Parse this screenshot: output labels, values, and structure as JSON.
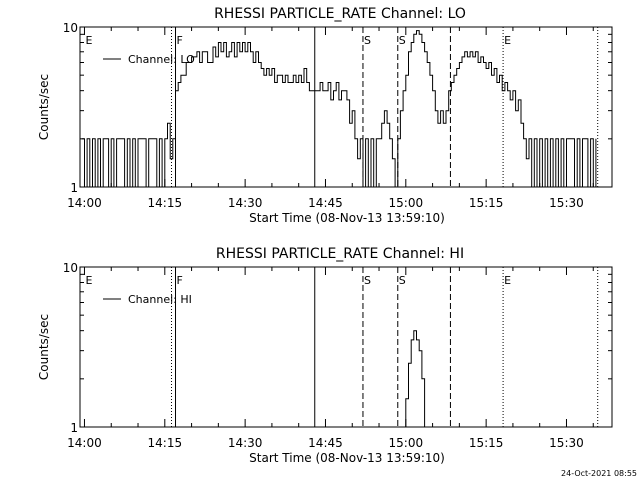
{
  "footer": {
    "timestamp": "24-Oct-2021 08:55"
  },
  "chart_data": [
    {
      "type": "line",
      "title": "RHESSI PARTICLE_RATE Channel: LO",
      "xlabel": "Start Time (08-Nov-13 13:59:10)",
      "ylabel": "Counts/sec",
      "y_scale": "log",
      "ylim": [
        1,
        10
      ],
      "xlim": [
        "13:59:10",
        "15:38:30"
      ],
      "yticks": [
        "1",
        "10"
      ],
      "xticks": [
        "14:00",
        "14:15",
        "14:30",
        "14:45",
        "15:00",
        "15:15",
        "15:30"
      ],
      "legend": "top-left",
      "series": [
        {
          "name": "Channel: LO",
          "points": [
            [
              "13:59:30",
              2
            ],
            [
              "14:00:00",
              1
            ],
            [
              "14:00:30",
              2
            ],
            [
              "14:01:00",
              1
            ],
            [
              "14:01:30",
              2
            ],
            [
              "14:02:00",
              1
            ],
            [
              "14:02:30",
              2
            ],
            [
              "14:03:00",
              1
            ],
            [
              "14:03:30",
              2
            ],
            [
              "14:04:00",
              2
            ],
            [
              "14:04:30",
              1
            ],
            [
              "14:05:00",
              2
            ],
            [
              "14:05:30",
              1
            ],
            [
              "14:06:00",
              2
            ],
            [
              "14:07:00",
              2
            ],
            [
              "14:07:30",
              1
            ],
            [
              "14:08:00",
              2
            ],
            [
              "14:08:30",
              1
            ],
            [
              "14:09:00",
              2
            ],
            [
              "14:09:30",
              1
            ],
            [
              "14:10:00",
              2
            ],
            [
              "14:11:00",
              2
            ],
            [
              "14:11:30",
              1
            ],
            [
              "14:12:00",
              2
            ],
            [
              "14:13:00",
              2
            ],
            [
              "14:13:30",
              1
            ],
            [
              "14:14:00",
              2
            ],
            [
              "14:14:30",
              1
            ],
            [
              "14:15:00",
              2
            ],
            [
              "14:15:30",
              2.5
            ],
            [
              "14:16:00",
              1.5
            ],
            [
              "14:16:30",
              2
            ],
            [
              "14:17:00",
              4
            ],
            [
              "14:17:30",
              4.5
            ],
            [
              "14:18:00",
              5
            ],
            [
              "14:19:00",
              6
            ],
            [
              "14:20:00",
              6.5
            ],
            [
              "14:21:00",
              7
            ],
            [
              "14:21:30",
              6
            ],
            [
              "14:22:00",
              7
            ],
            [
              "14:23:00",
              6
            ],
            [
              "14:24:00",
              7.5
            ],
            [
              "14:24:30",
              6.5
            ],
            [
              "14:25:00",
              8
            ],
            [
              "14:25:30",
              7
            ],
            [
              "14:26:00",
              8
            ],
            [
              "14:26:30",
              6.5
            ],
            [
              "14:27:00",
              7
            ],
            [
              "14:27:30",
              8
            ],
            [
              "14:28:00",
              6.5
            ],
            [
              "14:28:30",
              8
            ],
            [
              "14:29:00",
              7
            ],
            [
              "14:29:30",
              8
            ],
            [
              "14:30:00",
              7
            ],
            [
              "14:30:30",
              8
            ],
            [
              "14:31:00",
              7
            ],
            [
              "14:31:30",
              6
            ],
            [
              "14:32:00",
              7
            ],
            [
              "14:32:30",
              6
            ],
            [
              "14:33:00",
              5.5
            ],
            [
              "14:33:30",
              5
            ],
            [
              "14:34:00",
              5.5
            ],
            [
              "14:34:30",
              5
            ],
            [
              "14:35:00",
              5.5
            ],
            [
              "14:35:30",
              4.5
            ],
            [
              "14:36:00",
              5
            ],
            [
              "14:37:00",
              4.5
            ],
            [
              "14:37:30",
              5
            ],
            [
              "14:38:00",
              4.5
            ],
            [
              "14:39:00",
              5
            ],
            [
              "14:39:30",
              4.5
            ],
            [
              "14:40:00",
              5
            ],
            [
              "14:40:30",
              4.5
            ],
            [
              "14:41:00",
              5.5
            ],
            [
              "14:41:30",
              4.5
            ],
            [
              "14:42:00",
              4
            ],
            [
              "14:43:00",
              4
            ],
            [
              "14:44:00",
              4.5
            ],
            [
              "14:44:30",
              4
            ],
            [
              "14:45:00",
              4
            ],
            [
              "14:45:30",
              4.5
            ],
            [
              "14:46:00",
              3.5
            ],
            [
              "14:46:30",
              4
            ],
            [
              "14:47:00",
              4.5
            ],
            [
              "14:47:30",
              3.5
            ],
            [
              "14:48:00",
              4
            ],
            [
              "14:49:00",
              3.5
            ],
            [
              "14:49:30",
              2.5
            ],
            [
              "14:50:00",
              3
            ],
            [
              "14:50:30",
              2
            ],
            [
              "14:51:00",
              1.5
            ],
            [
              "14:51:30",
              2
            ],
            [
              "14:52:00",
              1
            ],
            [
              "14:52:30",
              2
            ],
            [
              "14:53:00",
              1
            ],
            [
              "14:53:30",
              2
            ],
            [
              "14:54:00",
              1
            ],
            [
              "14:54:30",
              2
            ],
            [
              "14:55:00",
              2
            ],
            [
              "14:55:30",
              2.5
            ],
            [
              "14:56:00",
              3
            ],
            [
              "14:56:30",
              2.5
            ],
            [
              "14:57:00",
              2
            ],
            [
              "14:57:30",
              1.5
            ],
            [
              "14:58:00",
              1
            ],
            [
              "14:58:30",
              2
            ],
            [
              "14:59:00",
              3
            ],
            [
              "14:59:30",
              4
            ],
            [
              "15:00:00",
              5
            ],
            [
              "15:00:30",
              7
            ],
            [
              "15:01:00",
              8
            ],
            [
              "15:01:30",
              9
            ],
            [
              "15:02:00",
              9.5
            ],
            [
              "15:02:30",
              9
            ],
            [
              "15:03:00",
              8
            ],
            [
              "15:03:30",
              7
            ],
            [
              "15:04:00",
              6
            ],
            [
              "15:04:30",
              5
            ],
            [
              "15:05:00",
              4
            ],
            [
              "15:05:30",
              3
            ],
            [
              "15:06:00",
              2.5
            ],
            [
              "15:06:30",
              3
            ],
            [
              "15:07:00",
              2.5
            ],
            [
              "15:07:30",
              3
            ],
            [
              "15:08:00",
              4
            ],
            [
              "15:08:30",
              4.5
            ],
            [
              "15:09:00",
              5
            ],
            [
              "15:09:30",
              5.5
            ],
            [
              "15:10:00",
              6
            ],
            [
              "15:10:30",
              6.5
            ],
            [
              "15:11:00",
              7
            ],
            [
              "15:11:30",
              6.5
            ],
            [
              "15:12:00",
              7
            ],
            [
              "15:12:30",
              6.5
            ],
            [
              "15:13:00",
              7
            ],
            [
              "15:13:30",
              6
            ],
            [
              "15:14:00",
              6.5
            ],
            [
              "15:14:30",
              6
            ],
            [
              "15:15:00",
              5.5
            ],
            [
              "15:15:30",
              6
            ],
            [
              "15:16:00",
              5
            ],
            [
              "15:16:30",
              5.5
            ],
            [
              "15:17:00",
              4.5
            ],
            [
              "15:17:30",
              5
            ],
            [
              "15:18:00",
              4
            ],
            [
              "15:18:30",
              4.5
            ],
            [
              "15:19:00",
              4
            ],
            [
              "15:19:30",
              3.5
            ],
            [
              "15:20:00",
              4
            ],
            [
              "15:20:30",
              3
            ],
            [
              "15:21:00",
              3.5
            ],
            [
              "15:21:30",
              2.5
            ],
            [
              "15:22:00",
              2
            ],
            [
              "15:22:30",
              1.5
            ],
            [
              "15:23:00",
              2
            ],
            [
              "15:23:30",
              1
            ],
            [
              "15:24:00",
              2
            ],
            [
              "15:24:30",
              1
            ],
            [
              "15:25:00",
              2
            ],
            [
              "15:25:30",
              1
            ],
            [
              "15:26:00",
              2
            ],
            [
              "15:26:30",
              1
            ],
            [
              "15:27:00",
              2
            ],
            [
              "15:27:30",
              1
            ],
            [
              "15:28:00",
              2
            ],
            [
              "15:28:30",
              1
            ],
            [
              "15:29:00",
              2
            ],
            [
              "15:29:30",
              1
            ],
            [
              "15:30:00",
              2
            ],
            [
              "15:31:00",
              2
            ],
            [
              "15:31:30",
              1
            ],
            [
              "15:32:00",
              2
            ],
            [
              "15:32:30",
              1
            ],
            [
              "15:33:00",
              2
            ],
            [
              "15:34:00",
              1
            ],
            [
              "15:34:30",
              2
            ],
            [
              "15:35:00",
              1
            ],
            [
              "15:35:30",
              2
            ]
          ]
        }
      ]
    },
    {
      "type": "line",
      "title": "RHESSI PARTICLE_RATE Channel: HI",
      "xlabel": "Start Time (08-Nov-13 13:59:10)",
      "ylabel": "Counts/sec",
      "y_scale": "log",
      "ylim": [
        1,
        10
      ],
      "xlim": [
        "13:59:10",
        "15:38:30"
      ],
      "yticks": [
        "1",
        "10"
      ],
      "xticks": [
        "14:00",
        "14:15",
        "14:30",
        "14:45",
        "15:00",
        "15:15",
        "15:30"
      ],
      "legend": "top-left",
      "series": [
        {
          "name": "Channel: HI",
          "points": [
            [
              "14:59:30",
              1
            ],
            [
              "15:00:00",
              1.5
            ],
            [
              "15:00:30",
              2.5
            ],
            [
              "15:01:00",
              3.5
            ],
            [
              "15:01:30",
              4
            ],
            [
              "15:02:00",
              3.5
            ],
            [
              "15:02:30",
              3
            ],
            [
              "15:03:00",
              2
            ],
            [
              "15:03:30",
              1
            ]
          ]
        }
      ]
    }
  ],
  "event_markers": [
    {
      "label": "E",
      "time": "14:00:00",
      "style": "none"
    },
    {
      "label": "F",
      "time": "14:17:00",
      "style": "solid"
    },
    {
      "label": "",
      "time": "14:16:15",
      "style": "dotted"
    },
    {
      "label": "",
      "time": "14:43:00",
      "style": "solid"
    },
    {
      "label": "S",
      "time": "14:52:00",
      "style": "dashed"
    },
    {
      "label": "S",
      "time": "14:58:30",
      "style": "dashed"
    },
    {
      "label": "",
      "time": "15:08:20",
      "style": "dashed"
    },
    {
      "label": "E",
      "time": "15:18:10",
      "style": "dotted"
    },
    {
      "label": "",
      "time": "15:35:50",
      "style": "dotted"
    }
  ]
}
